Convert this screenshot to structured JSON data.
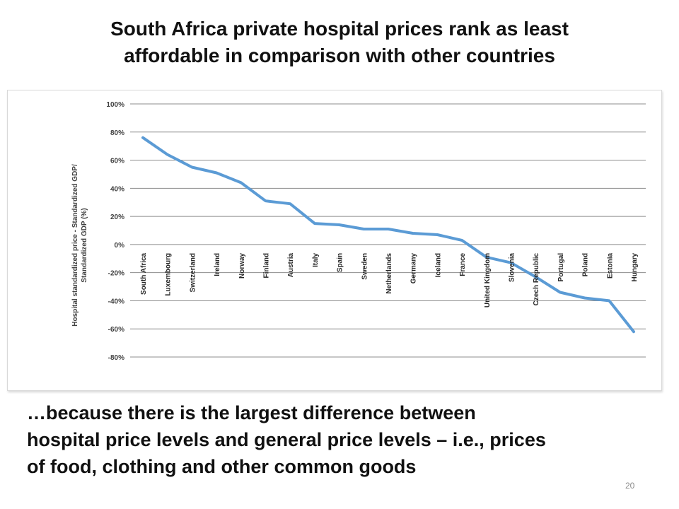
{
  "slide": {
    "title_lines": [
      "South Africa private hospital prices rank as least",
      "affordable in comparison with other countries"
    ],
    "body_lines": [
      "…because there is the largest difference between",
      "hospital price levels and general price levels – i.e., prices",
      "of food, clothing and other common goods"
    ],
    "page_number": "20"
  },
  "chart_data": {
    "type": "line",
    "title": "",
    "ylabel_lines": [
      "Hospital standardized price - Standardized GDP/",
      "Standardized GDP (%)"
    ],
    "xlabel": "",
    "ylim": [
      -80,
      100
    ],
    "yticks": [
      100,
      80,
      60,
      40,
      20,
      0,
      -20,
      -40,
      -60,
      -80
    ],
    "ytick_labels": [
      "100%",
      "80%",
      "60%",
      "40%",
      "20%",
      "0%",
      "-20%",
      "-40%",
      "-60%",
      "-80%"
    ],
    "grid": true,
    "line_color": "#5b9bd5",
    "categories": [
      "South Africa",
      "Luxembourg",
      "Switzerland",
      "Ireland",
      "Norway",
      "Finland",
      "Austria",
      "Italy",
      "Spain",
      "Sweden",
      "Netherlands",
      "Germany",
      "Iceland",
      "France",
      "United Kingdom",
      "Slovenia",
      "Czech Republic",
      "Portugal",
      "Poland",
      "Estonia",
      "Hungary"
    ],
    "series": [
      {
        "values": [
          76,
          64,
          55,
          51,
          44,
          31,
          29,
          15,
          14,
          11,
          11,
          8,
          7,
          3,
          -9,
          -13,
          -23,
          -34,
          -38,
          -40,
          -62
        ]
      }
    ]
  }
}
